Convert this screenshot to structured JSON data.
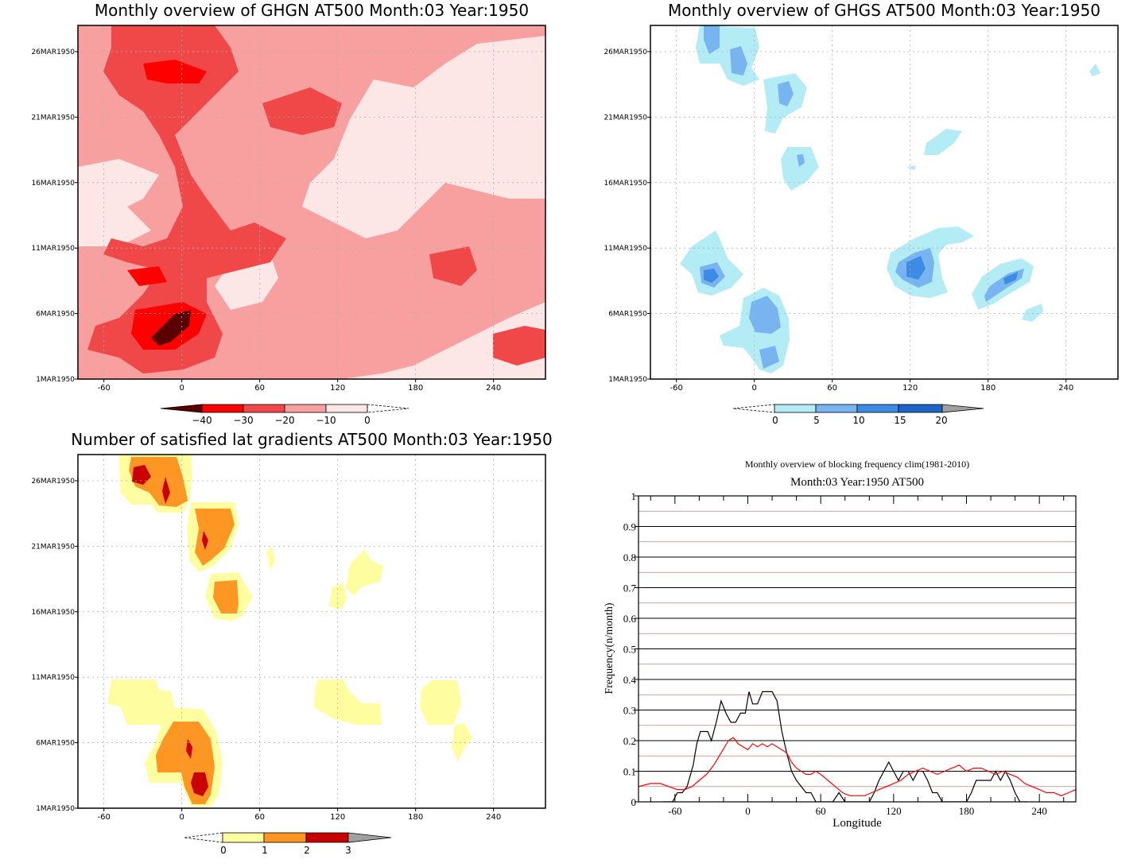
{
  "panels": {
    "ghgn": {
      "title": "Monthly overview of GHGN AT500 Month:03 Year:1950",
      "colorbar": {
        "labels": [
          "−40",
          "−30",
          "−20",
          "−10",
          "0"
        ]
      }
    },
    "ghgs": {
      "title": "Monthly overview of GHGS AT500 Month:03 Year:1950",
      "colorbar": {
        "labels": [
          "0",
          "5",
          "10",
          "15",
          "20"
        ]
      }
    },
    "lat": {
      "title": "Number of satisfied lat gradients AT500 Month:03 Year:1950",
      "colorbar": {
        "labels": [
          "0",
          "1",
          "2",
          "3"
        ]
      }
    },
    "freq": {
      "title": "Monthly overview of blocking frequency clim(1981-2010)",
      "subtitle": "Month:03 Year:1950  AT500"
    }
  },
  "hovmoller_axes": {
    "x_ticks": [
      "-60",
      "0",
      "60",
      "120",
      "180",
      "240"
    ],
    "y_ticks": [
      "1MAR1950",
      "6MAR1950",
      "11MAR1950",
      "16MAR1950",
      "21MAR1950",
      "26MAR1950"
    ]
  },
  "palettes": {
    "reds": [
      "#5a0000",
      "#ff0000",
      "#f04848",
      "#f8a0a0",
      "#fde6e6"
    ],
    "blues": [
      "#b4ecf6",
      "#78b4f0",
      "#3c8ce6",
      "#1e64c8"
    ],
    "yellows": [
      "#fefea0",
      "#fe9624",
      "#c80000"
    ],
    "over": "#a0a0a0"
  },
  "chart_data": {
    "type": "line",
    "title": "Monthly overview of blocking frequency clim(1981-2010)",
    "subtitle": "Month:03 Year:1950  AT500",
    "xlabel": "Longitude",
    "ylabel": "Frequency(n/month)",
    "xlim": [
      -90,
      270
    ],
    "ylim": [
      0,
      1
    ],
    "x_ticks": [
      "-60",
      "0",
      "60",
      "120",
      "180",
      "240"
    ],
    "y_ticks": [
      "0",
      "0.1",
      "0.2",
      "0.3",
      "0.4",
      "0.5",
      "0.6",
      "0.7",
      "0.8",
      "0.9",
      "1"
    ],
    "series": [
      {
        "color": "#000000",
        "x": [
          -70,
          -62,
          -58,
          -54,
          -50,
          -45,
          -42,
          -39,
          -33,
          -30,
          -26,
          -22,
          -18,
          -14,
          -10,
          -6,
          -2,
          1,
          4,
          8,
          12,
          16,
          20,
          24,
          28,
          32,
          36,
          40,
          44,
          48,
          52,
          56,
          60,
          70,
          75,
          80,
          90,
          100,
          104,
          108,
          112,
          116,
          120,
          124,
          128,
          132,
          136,
          140,
          144,
          148,
          152,
          156,
          160,
          170,
          180,
          184,
          188,
          192,
          196,
          200,
          204,
          208,
          212,
          216,
          220,
          224,
          230
        ],
        "y": [
          0,
          0,
          0.03,
          0.03,
          0.05,
          0.12,
          0.19,
          0.23,
          0.23,
          0.2,
          0.26,
          0.33,
          0.29,
          0.26,
          0.26,
          0.29,
          0.29,
          0.36,
          0.32,
          0.32,
          0.36,
          0.36,
          0.36,
          0.33,
          0.23,
          0.16,
          0.1,
          0.07,
          0.05,
          0.03,
          0.03,
          0,
          0,
          0,
          0.03,
          0,
          0,
          0,
          0.03,
          0.07,
          0.1,
          0.13,
          0.1,
          0.07,
          0.1,
          0.1,
          0.07,
          0.1,
          0.1,
          0.07,
          0.03,
          0.03,
          0,
          0,
          0,
          0.03,
          0.07,
          0.07,
          0.07,
          0.07,
          0.1,
          0.07,
          0.1,
          0.07,
          0.03,
          0,
          0
        ]
      },
      {
        "color": "#ff0000",
        "x": [
          -90,
          -80,
          -72,
          -65,
          -58,
          -52,
          -46,
          -40,
          -34,
          -28,
          -22,
          -16,
          -12,
          -8,
          -4,
          0,
          4,
          8,
          12,
          16,
          20,
          24,
          28,
          32,
          36,
          40,
          44,
          48,
          52,
          56,
          60,
          66,
          72,
          78,
          84,
          90,
          96,
          102,
          108,
          114,
          120,
          126,
          132,
          138,
          144,
          150,
          156,
          162,
          168,
          174,
          180,
          186,
          192,
          198,
          204,
          210,
          216,
          222,
          228,
          234,
          240,
          246,
          252,
          258,
          264,
          270
        ],
        "y": [
          0.05,
          0.06,
          0.06,
          0.05,
          0.04,
          0.04,
          0.05,
          0.07,
          0.09,
          0.12,
          0.16,
          0.2,
          0.21,
          0.19,
          0.18,
          0.17,
          0.19,
          0.18,
          0.19,
          0.18,
          0.19,
          0.18,
          0.17,
          0.16,
          0.13,
          0.11,
          0.1,
          0.09,
          0.09,
          0.1,
          0.09,
          0.07,
          0.05,
          0.03,
          0.02,
          0.02,
          0.02,
          0.03,
          0.04,
          0.05,
          0.06,
          0.07,
          0.09,
          0.1,
          0.11,
          0.1,
          0.09,
          0.1,
          0.11,
          0.12,
          0.1,
          0.11,
          0.11,
          0.1,
          0.09,
          0.1,
          0.09,
          0.08,
          0.06,
          0.05,
          0.04,
          0.03,
          0.03,
          0.02,
          0.03,
          0.04
        ]
      }
    ]
  }
}
